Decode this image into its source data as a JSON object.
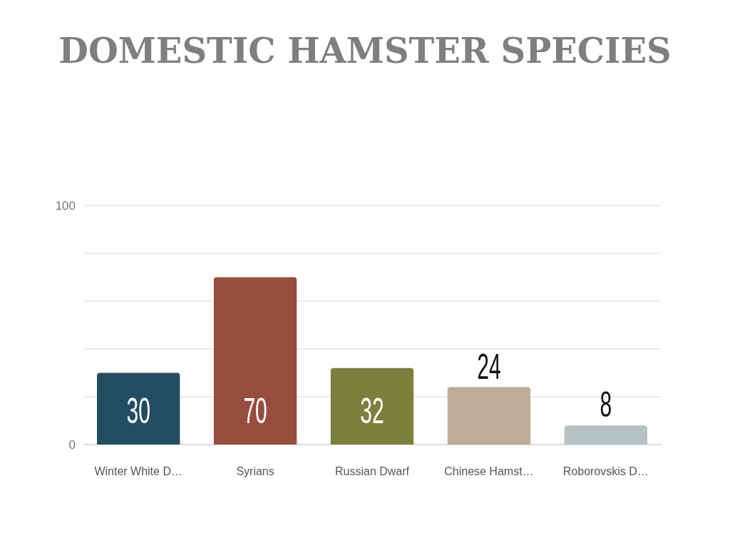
{
  "chart_data": {
    "type": "bar",
    "title": "DOMESTIC HAMSTER SPECIES",
    "categories": [
      "Winter White D…",
      "Syrians",
      "Russian Dwarf",
      "Chinese Hamst…",
      "Roborovskis D…"
    ],
    "values": [
      30,
      70,
      32,
      24,
      8
    ],
    "colors": [
      "#234d63",
      "#964d3e",
      "#7b813c",
      "#bcac98",
      "#b4c2c3"
    ],
    "ylim": [
      0,
      100
    ],
    "yticks": [
      0,
      {
        "value": 20,
        "label": null
      },
      {
        "value": 40,
        "label": null
      },
      {
        "value": 60,
        "label": null
      },
      {
        "value": 80,
        "label": null
      },
      100
    ],
    "grid": "y",
    "data_labels": true
  }
}
